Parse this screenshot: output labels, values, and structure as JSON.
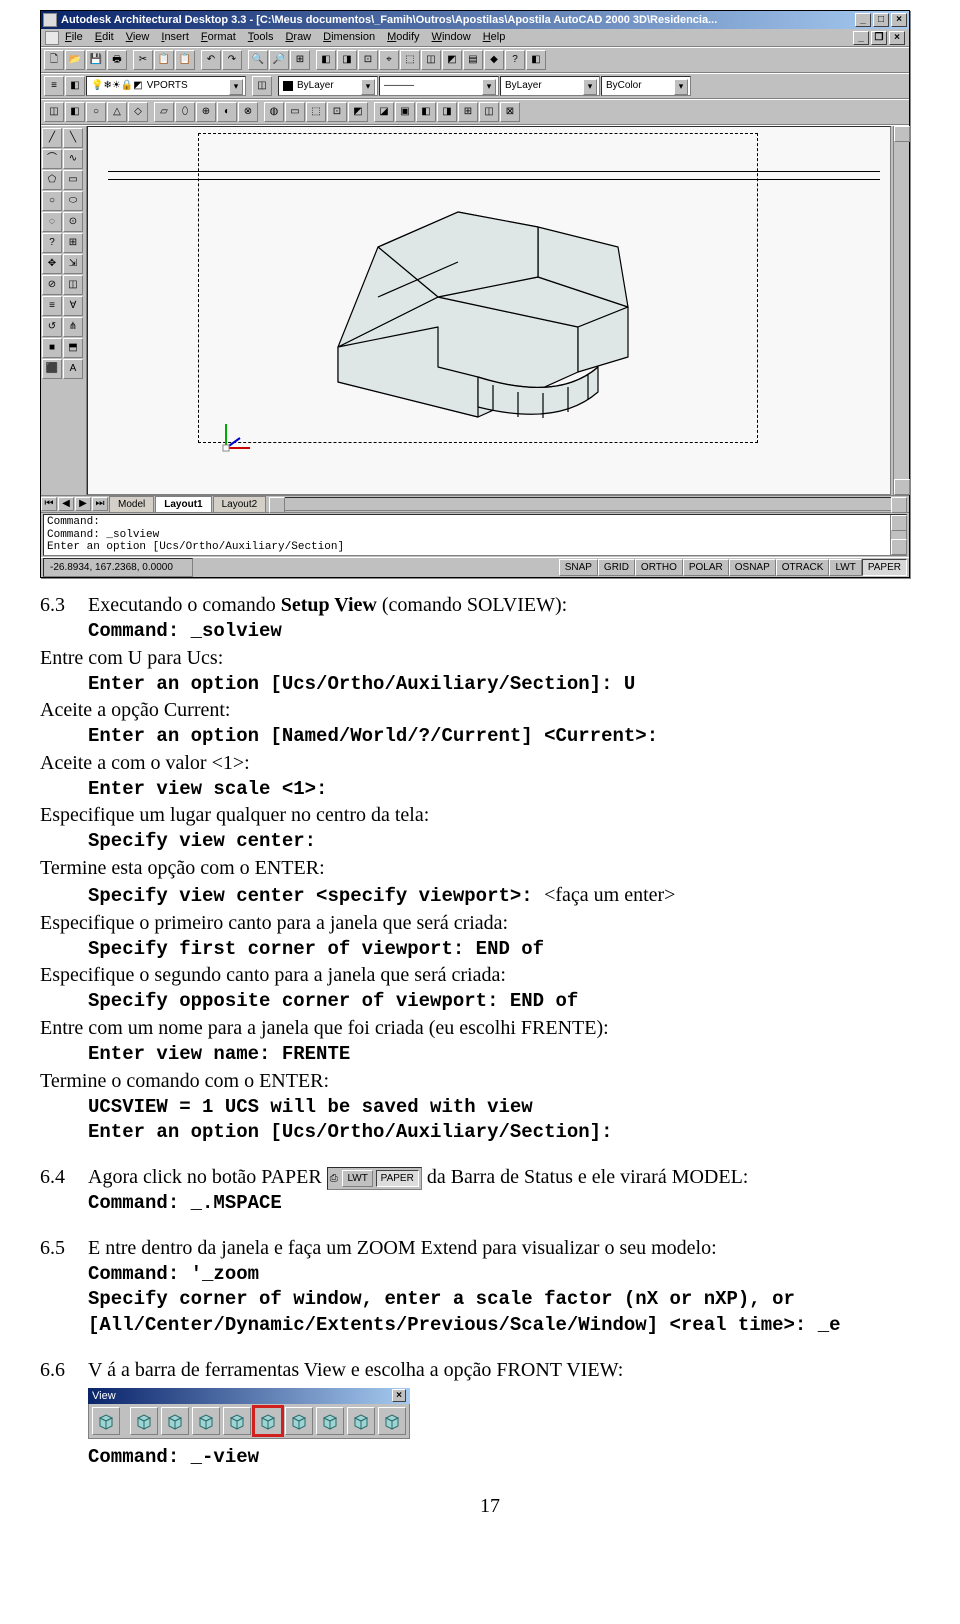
{
  "screenshot": {
    "title": "Autodesk Architectural Desktop 3.3 - [C:\\Meus documentos\\_Famih\\Outros\\Apostilas\\Apostila AutoCAD 2000 3D\\Residencia...",
    "menus": [
      "File",
      "Edit",
      "View",
      "Insert",
      "Format",
      "Tools",
      "Draw",
      "Dimension",
      "Modify",
      "Window",
      "Help"
    ],
    "layer_combo": "VPORTS",
    "prop_combos": [
      "ByLayer",
      "———",
      "ByLayer",
      "ByColor"
    ],
    "tabs": {
      "items": [
        "Model",
        "Layout1",
        "Layout2"
      ],
      "active": "Layout1"
    },
    "cmd_lines": [
      "Command:",
      "Command: _solview",
      "Enter an option [Ucs/Ortho/Auxiliary/Section]"
    ],
    "coords": "-26.8934, 167.2368, 0.0000",
    "status_buttons": [
      "SNAP",
      "GRID",
      "ORTHO",
      "POLAR",
      "OSNAP",
      "OTRACK",
      "LWT",
      "PAPER"
    ],
    "status_pressed": "PAPER",
    "palette_glyphs": [
      "╱",
      "╲",
      "⌒",
      "∿",
      "⬠",
      "▭",
      "○",
      "⬭",
      "◌",
      "⊙",
      "?",
      "⊞",
      "✥",
      "⇲",
      "⊘",
      "◫",
      "≡",
      "∀",
      "↺",
      "⋔",
      "■",
      "⬒",
      "⬛",
      "A"
    ],
    "toolbar1_glyphs": [
      "🗋",
      "📂",
      "💾",
      "🖶",
      "✂",
      "📋",
      "📋",
      "↶",
      "↷",
      "🔍",
      "🔎",
      "⊞",
      "◧",
      "◨",
      "⊡",
      "⌖",
      "⬚",
      "◫",
      "◩",
      "▤",
      "◆",
      "?",
      "◧"
    ],
    "toolbar3_glyphs": [
      "◫",
      "◧",
      "○",
      "△",
      "◇",
      "▱",
      "⬯",
      "⊕",
      "◐",
      "⊗",
      "◍",
      "▭",
      "⬚",
      "⊡",
      "◩",
      "◪",
      "▣",
      "◧",
      "◨",
      "⊞",
      "◫",
      "⊠"
    ],
    "colors": {
      "titlebar_start": "#0a246a",
      "titlebar_end": "#a6caf0",
      "win_bg": "#c0c0c0",
      "canvas_bg": "#f8f8f8",
      "highlight_ring": "#d02020",
      "model_fill": "#dfe6e6",
      "model_stroke": "#000000"
    }
  },
  "doc": {
    "s63": {
      "num": "6.3",
      "heading_plain": "Executando o comando ",
      "heading_bold": "Setup View",
      "heading_tail": " (comando SOLVIEW):",
      "l1": "Command: _solview",
      "n1": "Entre com U para Ucs:",
      "l2": "Enter an option [Ucs/Ortho/Auxiliary/Section]: U",
      "n2": "Aceite a opção Current:",
      "l3": "Enter an option [Named/World/?/Current] <Current>:",
      "n3": "Aceite a com o valor <1>:",
      "l4": "Enter view scale <1>:",
      "n4": "Especifique um lugar qualquer no centro da tela:",
      "l5": "Specify view center:",
      "n5": "Termine esta opção com o ENTER:",
      "l6a": "Specify view center <specify viewport>: ",
      "l6b": "<faça um enter>",
      "n6": "Especifique o primeiro canto para a janela que será criada:",
      "l7": "Specify first corner of viewport: END of",
      "n7": "Especifique o segundo canto para a janela que será criada:",
      "l8": "Specify opposite corner of viewport: END of",
      "n8": "Entre com um nome para a janela que foi criada (eu escolhi FRENTE):",
      "l9": "Enter view name: FRENTE",
      "n9": "Termine o comando com o ENTER:",
      "l10": "UCSVIEW = 1  UCS will be saved with view",
      "l11": "Enter an option [Ucs/Ortho/Auxiliary/Section]:"
    },
    "s64": {
      "num": "6.4",
      "t1": "Agora click no botão PAPER ",
      "inline_btns": [
        "LWT",
        "PAPER"
      ],
      "t2": " da Barra de Status e ele virará MODEL:",
      "l1": "Command: _.MSPACE"
    },
    "s65": {
      "num": "6.5",
      "t1": "E ntre dentro da janela e faça um ZOOM Extend para visualizar o seu modelo:",
      "l1": "Command: '_zoom",
      "l2": "Specify corner of window, enter a scale factor (nX or nXP), or",
      "l3": "[All/Center/Dynamic/Extents/Previous/Scale/Window] <real time>: _e"
    },
    "s66": {
      "num": "6.6",
      "t1": "V á a barra de ferramentas View e escolha a opção FRONT VIEW:",
      "toolbar_title": "View",
      "l1": "Command: _-view"
    },
    "page_number": "17"
  },
  "view_toolbar": {
    "cube_fill": "#9fd4d4",
    "cube_stroke": "#2a6a6a",
    "highlight_index": 5,
    "count": 10
  }
}
